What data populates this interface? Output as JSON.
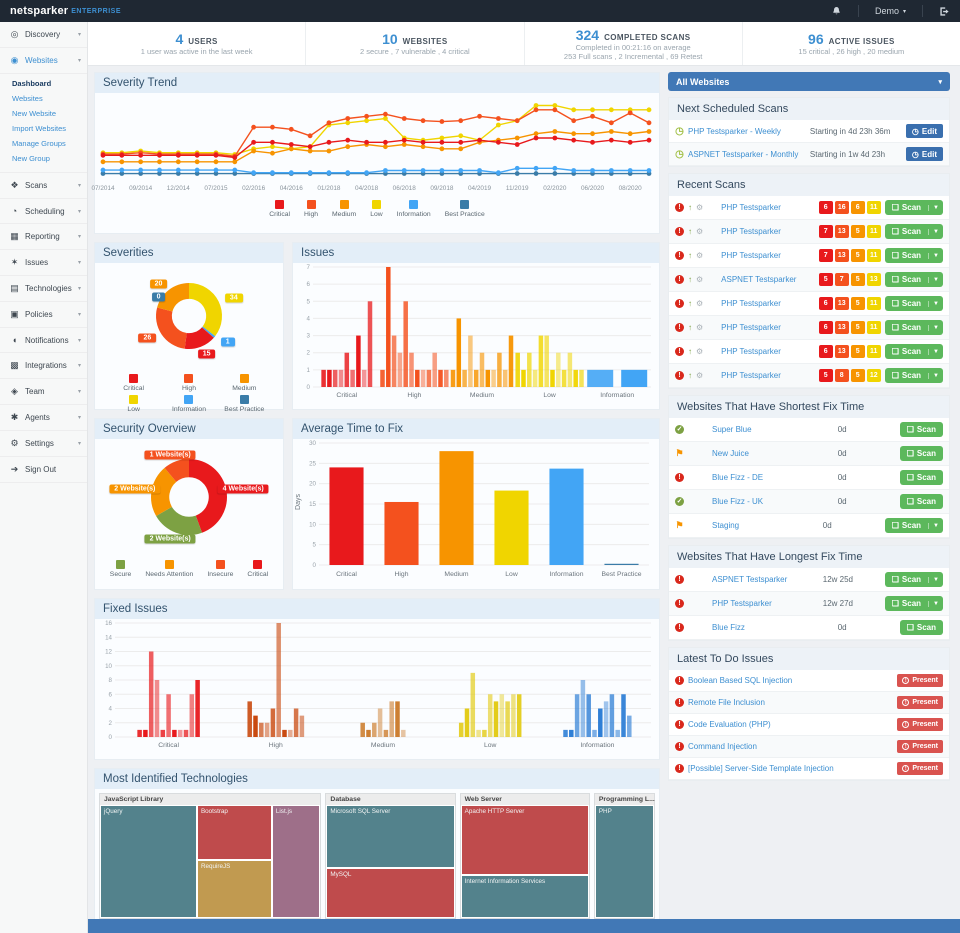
{
  "navbar": {
    "brand": "netsparker",
    "brand_suffix": "ENTERPRISE",
    "user_label": "Demo"
  },
  "stats": [
    {
      "number": "4",
      "label": "USERS",
      "lines": [
        "1 user was active in the last week"
      ]
    },
    {
      "number": "10",
      "label": "WEBSITES",
      "lines": [
        "2 secure , 7 vulnerable , 4 critical"
      ]
    },
    {
      "number": "324",
      "label": "COMPLETED SCANS",
      "lines": [
        "Completed in 00:21:16 on average",
        "253 Full scans , 2 Incremental , 69 Retest"
      ]
    },
    {
      "number": "96",
      "label": "ACTIVE ISSUES",
      "lines": [
        "15 critical , 26 high , 20 medium"
      ]
    }
  ],
  "sidebar": {
    "items": [
      {
        "label": "Discovery",
        "icon": "discovery-icon",
        "chevron": true
      },
      {
        "label": "Websites",
        "icon": "websites-icon",
        "chevron": true,
        "active": true,
        "submenu": [
          "Dashboard",
          "Websites",
          "New Website",
          "Import Websites",
          "Manage Groups",
          "New Group"
        ],
        "current_submenu": "Dashboard"
      },
      {
        "label": "Scans",
        "icon": "scans-icon",
        "chevron": true
      },
      {
        "label": "Scheduling",
        "icon": "scheduling-icon",
        "chevron": true
      },
      {
        "label": "Reporting",
        "icon": "reporting-icon",
        "chevron": true
      },
      {
        "label": "Issues",
        "icon": "issues-icon",
        "chevron": true
      },
      {
        "label": "Technologies",
        "icon": "technologies-icon",
        "chevron": true
      },
      {
        "label": "Policies",
        "icon": "policies-icon",
        "chevron": true
      },
      {
        "label": "Notifications",
        "icon": "notifications-icon",
        "chevron": true
      },
      {
        "label": "Integrations",
        "icon": "integrations-icon",
        "chevron": true
      },
      {
        "label": "Team",
        "icon": "team-icon",
        "chevron": true
      },
      {
        "label": "Agents",
        "icon": "agents-icon",
        "chevron": true
      },
      {
        "label": "Settings",
        "icon": "settings-icon",
        "chevron": true
      },
      {
        "label": "Sign Out",
        "icon": "sign-out-icon",
        "chevron": false
      }
    ]
  },
  "severity_colors": {
    "critical": "#e8191c",
    "high": "#f4511e",
    "medium": "#f79400",
    "low": "#f0d500",
    "information": "#42a5f5",
    "best_practice": "#3a7ca8"
  },
  "chart_data": [
    {
      "id": "severity_trend",
      "type": "line",
      "title": "Severity Trend",
      "x_ticks": [
        "07/2014",
        "09/2014",
        "12/2014",
        "07/2015",
        "02/2016",
        "04/2016",
        "01/2018",
        "04/2018",
        "06/2018",
        "09/2018",
        "04/2019",
        "11/2019",
        "02/2020",
        "06/2020",
        "08/2020"
      ],
      "ylim": [
        0,
        18
      ],
      "grid": false,
      "legend_position": "bottom",
      "series": [
        {
          "name": "Critical",
          "color": "#e8191c",
          "values": [
            5,
            5,
            5,
            5,
            5,
            5,
            5,
            4.5,
            8,
            8,
            7.5,
            7,
            8,
            8.5,
            8,
            8,
            8.5,
            8,
            8,
            8,
            8.5,
            8,
            7.5,
            9,
            9,
            8.5,
            8,
            8.5,
            8,
            8.5
          ]
        },
        {
          "name": "High",
          "color": "#f4511e",
          "values": [
            5.3,
            5.3,
            5.6,
            5.3,
            5.3,
            5.3,
            5.3,
            4.8,
            11.5,
            11.5,
            11,
            9.5,
            12.5,
            13.5,
            14,
            14.5,
            13.5,
            13,
            12.8,
            13,
            14,
            13.5,
            13,
            15.5,
            15.5,
            13,
            14,
            12.5,
            14.8,
            12.5
          ]
        },
        {
          "name": "Medium",
          "color": "#f79400",
          "values": [
            3.5,
            3.5,
            3.5,
            3.5,
            3.5,
            3.5,
            3.5,
            3.5,
            6,
            5.5,
            6.5,
            6,
            6,
            7,
            7.5,
            7,
            7.5,
            7,
            6.5,
            6.5,
            8,
            8.5,
            9,
            10,
            10.5,
            10,
            10,
            10.5,
            10,
            10.5
          ]
        },
        {
          "name": "Low",
          "color": "#f0d500",
          "values": [
            5.6,
            5.6,
            6,
            5.6,
            5.6,
            5.6,
            5.6,
            5.2,
            6.5,
            7,
            6.5,
            7,
            12,
            12.5,
            13,
            13.5,
            9,
            8.5,
            9,
            9.5,
            8.5,
            12,
            13,
            16.5,
            16.5,
            15.5,
            15.5,
            15.5,
            15.5,
            15.5
          ]
        },
        {
          "name": "Information",
          "color": "#42a5f5",
          "values": [
            1.6,
            1.6,
            1.6,
            1.6,
            1.6,
            1.6,
            1.6,
            1.6,
            1,
            1,
            1,
            1,
            1,
            1,
            1,
            1.5,
            1.5,
            1.5,
            1.5,
            1.5,
            1.5,
            1,
            2,
            2,
            2,
            1.5,
            1.5,
            1.5,
            1.5,
            1.5
          ]
        },
        {
          "name": "Best Practice",
          "color": "#3a7ca8",
          "values": [
            0.8,
            0.8,
            0.8,
            0.8,
            0.8,
            0.8,
            0.8,
            0.8,
            0.8,
            0.8,
            0.8,
            0.8,
            0.8,
            0.8,
            0.8,
            0.8,
            0.8,
            0.8,
            0.8,
            0.8,
            0.8,
            0.8,
            0.8,
            0.8,
            0.8,
            0.8,
            0.8,
            0.8,
            0.8,
            0.8
          ]
        }
      ]
    },
    {
      "id": "severities",
      "type": "pie",
      "title": "Severities",
      "donut": true,
      "slices": [
        {
          "label": "Low",
          "value": 34,
          "color": "#f0d500"
        },
        {
          "label": "Information",
          "value": 1,
          "color": "#42a5f5"
        },
        {
          "label": "Critical",
          "value": 15,
          "color": "#e8191c"
        },
        {
          "label": "High",
          "value": 26,
          "color": "#f4511e"
        },
        {
          "label": "Medium",
          "value": 20,
          "color": "#f79400"
        },
        {
          "label": "Best Practice",
          "value": 0,
          "color": "#3a7ca8"
        }
      ],
      "legend": [
        {
          "label": "Critical",
          "color": "#e8191c"
        },
        {
          "label": "High",
          "color": "#f4511e"
        },
        {
          "label": "Medium",
          "color": "#f79400"
        },
        {
          "label": "Low",
          "color": "#f0d500"
        },
        {
          "label": "Information",
          "color": "#42a5f5"
        },
        {
          "label": "Best Practice",
          "color": "#3a7ca8"
        }
      ],
      "legend_cols": 3
    },
    {
      "id": "issues",
      "type": "grouped_bars",
      "title": "Issues",
      "ymax": 7,
      "yticks": [
        0,
        1,
        2,
        3,
        4,
        5,
        6,
        7
      ],
      "groups": [
        {
          "label": "Critical",
          "color": "#e8191c",
          "values": [
            1,
            1,
            1,
            1,
            2,
            1,
            3,
            1,
            5
          ]
        },
        {
          "label": "High",
          "color": "#f4511e",
          "values": [
            1,
            7,
            3,
            2,
            5,
            2,
            1,
            1,
            1,
            2,
            1,
            1
          ]
        },
        {
          "label": "Medium",
          "color": "#f79400",
          "values": [
            1,
            4,
            1,
            3,
            1,
            2,
            1,
            1,
            2,
            1,
            3
          ]
        },
        {
          "label": "Low",
          "color": "#f0d500",
          "values": [
            2,
            1,
            2,
            1,
            3,
            3,
            1,
            2,
            1,
            2,
            1,
            1
          ]
        },
        {
          "label": "Information",
          "color": "#42a5f5",
          "values": [
            1,
            1
          ],
          "wide": true
        }
      ]
    },
    {
      "id": "security_overview",
      "type": "pie",
      "title": "Security Overview",
      "donut": true,
      "slices": [
        {
          "label": "Critical",
          "value": 4,
          "color": "#e8191c",
          "callout": "4 Website(s)"
        },
        {
          "label": "Secure",
          "value": 2,
          "color": "#7da143",
          "callout": "2 Website(s)"
        },
        {
          "label": "Needs Attention",
          "value": 2,
          "color": "#f79400",
          "callout": "2 Website(s)"
        },
        {
          "label": "Insecure",
          "value": 1,
          "color": "#f4511e",
          "callout": "1 Website(s)"
        }
      ],
      "legend": [
        {
          "label": "Secure",
          "color": "#7da143"
        },
        {
          "label": "Needs Attention",
          "color": "#f79400"
        },
        {
          "label": "Insecure",
          "color": "#f4511e"
        },
        {
          "label": "Critical",
          "color": "#e8191c"
        }
      ],
      "legend_cols": 4
    },
    {
      "id": "avg_fix",
      "type": "bar",
      "title": "Average Time to Fix",
      "ylabel": "Days",
      "ymax": 30,
      "yticks": [
        0,
        5,
        10,
        15,
        20,
        25,
        30
      ],
      "categories": [
        "Critical",
        "High",
        "Medium",
        "Low",
        "Information",
        "Best Practice"
      ],
      "values": [
        24,
        15.5,
        28,
        18.3,
        23.7,
        0.3
      ],
      "colors": [
        "#e8191c",
        "#f4511e",
        "#f79400",
        "#f0d500",
        "#42a5f5",
        "#3a7ca8"
      ]
    },
    {
      "id": "fixed_issues",
      "type": "grouped_bars",
      "title": "Fixed Issues",
      "ymax": 16,
      "yticks": [
        0,
        2,
        4,
        6,
        8,
        10,
        12,
        14,
        16
      ],
      "groups": [
        {
          "label": "Critical",
          "color": "#e8191c",
          "values": [
            1,
            1,
            12,
            8,
            1,
            6,
            1,
            1,
            1,
            6,
            8
          ]
        },
        {
          "label": "High",
          "color": "#c94a10",
          "values": [
            5,
            3,
            2,
            2,
            4,
            16,
            1,
            1,
            4,
            3
          ]
        },
        {
          "label": "Medium",
          "color": "#cd7f32",
          "values": [
            2,
            1,
            2,
            4,
            1,
            5,
            5,
            1
          ]
        },
        {
          "label": "Low",
          "color": "#e3cc1a",
          "values": [
            2,
            4,
            9,
            1,
            1,
            6,
            5,
            6,
            5,
            6,
            6
          ]
        },
        {
          "label": "Information",
          "color": "#2f7fd6",
          "values": [
            1,
            1,
            6,
            8,
            6,
            1,
            4,
            5,
            6,
            1,
            6,
            3
          ]
        }
      ]
    },
    {
      "id": "technologies",
      "type": "treemap",
      "title": "Most Identified Technologies",
      "groups": [
        {
          "label": "JavaScript Library",
          "width": 41,
          "cells": [
            {
              "label": "jQuery",
              "color": "#53828c",
              "x": 0,
              "y": 0,
              "w": 44,
              "h": 100
            },
            {
              "label": "Bootstrap",
              "color": "#bf4b4c",
              "x": 44,
              "y": 0,
              "w": 34,
              "h": 49
            },
            {
              "label": "RequireJS",
              "color": "#c19a50",
              "x": 44,
              "y": 49,
              "w": 34,
              "h": 51
            },
            {
              "label": "List.js",
              "color": "#9e6f89",
              "x": 78,
              "y": 0,
              "w": 22,
              "h": 100
            }
          ]
        },
        {
          "label": "Database",
          "width": 24,
          "cells": [
            {
              "label": "Microsoft SQL Server",
              "color": "#53828c",
              "x": 0,
              "y": 0,
              "w": 100,
              "h": 56
            },
            {
              "label": "MySQL",
              "color": "#bf4b4c",
              "x": 0,
              "y": 56,
              "w": 100,
              "h": 44
            }
          ]
        },
        {
          "label": "Web Server",
          "width": 24,
          "cells": [
            {
              "label": "Apache HTTP Server",
              "color": "#bf4b4c",
              "x": 0,
              "y": 0,
              "w": 100,
              "h": 62
            },
            {
              "label": "Internet Information Services",
              "color": "#53828c",
              "x": 0,
              "y": 62,
              "w": 100,
              "h": 38
            }
          ]
        },
        {
          "label": "Programming L...",
          "width": 11,
          "cells": [
            {
              "label": "PHP",
              "color": "#53828c",
              "x": 0,
              "y": 0,
              "w": 100,
              "h": 100
            }
          ]
        }
      ]
    }
  ],
  "right": {
    "websites_filter": "All Websites",
    "scan_label": "Scan",
    "edit_label": "Edit",
    "present_label": "Present",
    "next_scheduled": {
      "title": "Next Scheduled Scans",
      "rows": [
        {
          "name": "PHP Testsparker - Weekly",
          "starting": "Starting in 4d 23h 36m"
        },
        {
          "name": "ASPNET Testsparker - Monthly",
          "starting": "Starting in 1w 4d 23h"
        }
      ]
    },
    "recent_scans": {
      "title": "Recent Scans",
      "rows": [
        {
          "name": "PHP Testsparker",
          "counts": [
            6,
            16,
            6,
            11
          ],
          "caret": true
        },
        {
          "name": "PHP Testsparker",
          "counts": [
            7,
            13,
            5,
            11
          ],
          "caret": true
        },
        {
          "name": "PHP Testsparker",
          "counts": [
            7,
            13,
            5,
            11
          ],
          "caret": true
        },
        {
          "name": "ASPNET Testsparker",
          "counts": [
            5,
            7,
            5,
            13
          ],
          "caret": true
        },
        {
          "name": "PHP Testsparker",
          "counts": [
            6,
            13,
            5,
            11
          ],
          "caret": true
        },
        {
          "name": "PHP Testsparker",
          "counts": [
            6,
            13,
            5,
            11
          ],
          "caret": true
        },
        {
          "name": "PHP Testsparker",
          "counts": [
            6,
            13,
            5,
            11
          ],
          "caret": true
        },
        {
          "name": "PHP Testsparker",
          "counts": [
            5,
            8,
            5,
            12
          ],
          "caret": true
        }
      ]
    },
    "shortest_fix": {
      "title": "Websites That Have Shortest Fix Time",
      "rows": [
        {
          "name": "Super Blue",
          "time": "0d",
          "status": "ok",
          "caret": false
        },
        {
          "name": "New Juice",
          "time": "0d",
          "status": "flag",
          "caret": false
        },
        {
          "name": "Blue Fizz - DE",
          "time": "0d",
          "status": "alert",
          "caret": false
        },
        {
          "name": "Blue Fizz - UK",
          "time": "0d",
          "status": "ok",
          "caret": false
        },
        {
          "name": "Staging",
          "time": "0d",
          "status": "flag",
          "caret": true
        }
      ]
    },
    "longest_fix": {
      "title": "Websites That Have Longest Fix Time",
      "rows": [
        {
          "name": "ASPNET Testsparker",
          "time": "12w 25d",
          "status": "alert",
          "caret": true
        },
        {
          "name": "PHP Testsparker",
          "time": "12w 27d",
          "status": "alert",
          "caret": true
        },
        {
          "name": "Blue Fizz",
          "time": "0d",
          "status": "alert",
          "caret": false
        }
      ]
    },
    "todo_issues": {
      "title": "Latest To Do Issues",
      "rows": [
        "Boolean Based SQL Injection",
        "Remote File Inclusion",
        "Code Evaluation (PHP)",
        "Command Injection",
        "[Possible] Server-Side Template Injection"
      ]
    }
  }
}
